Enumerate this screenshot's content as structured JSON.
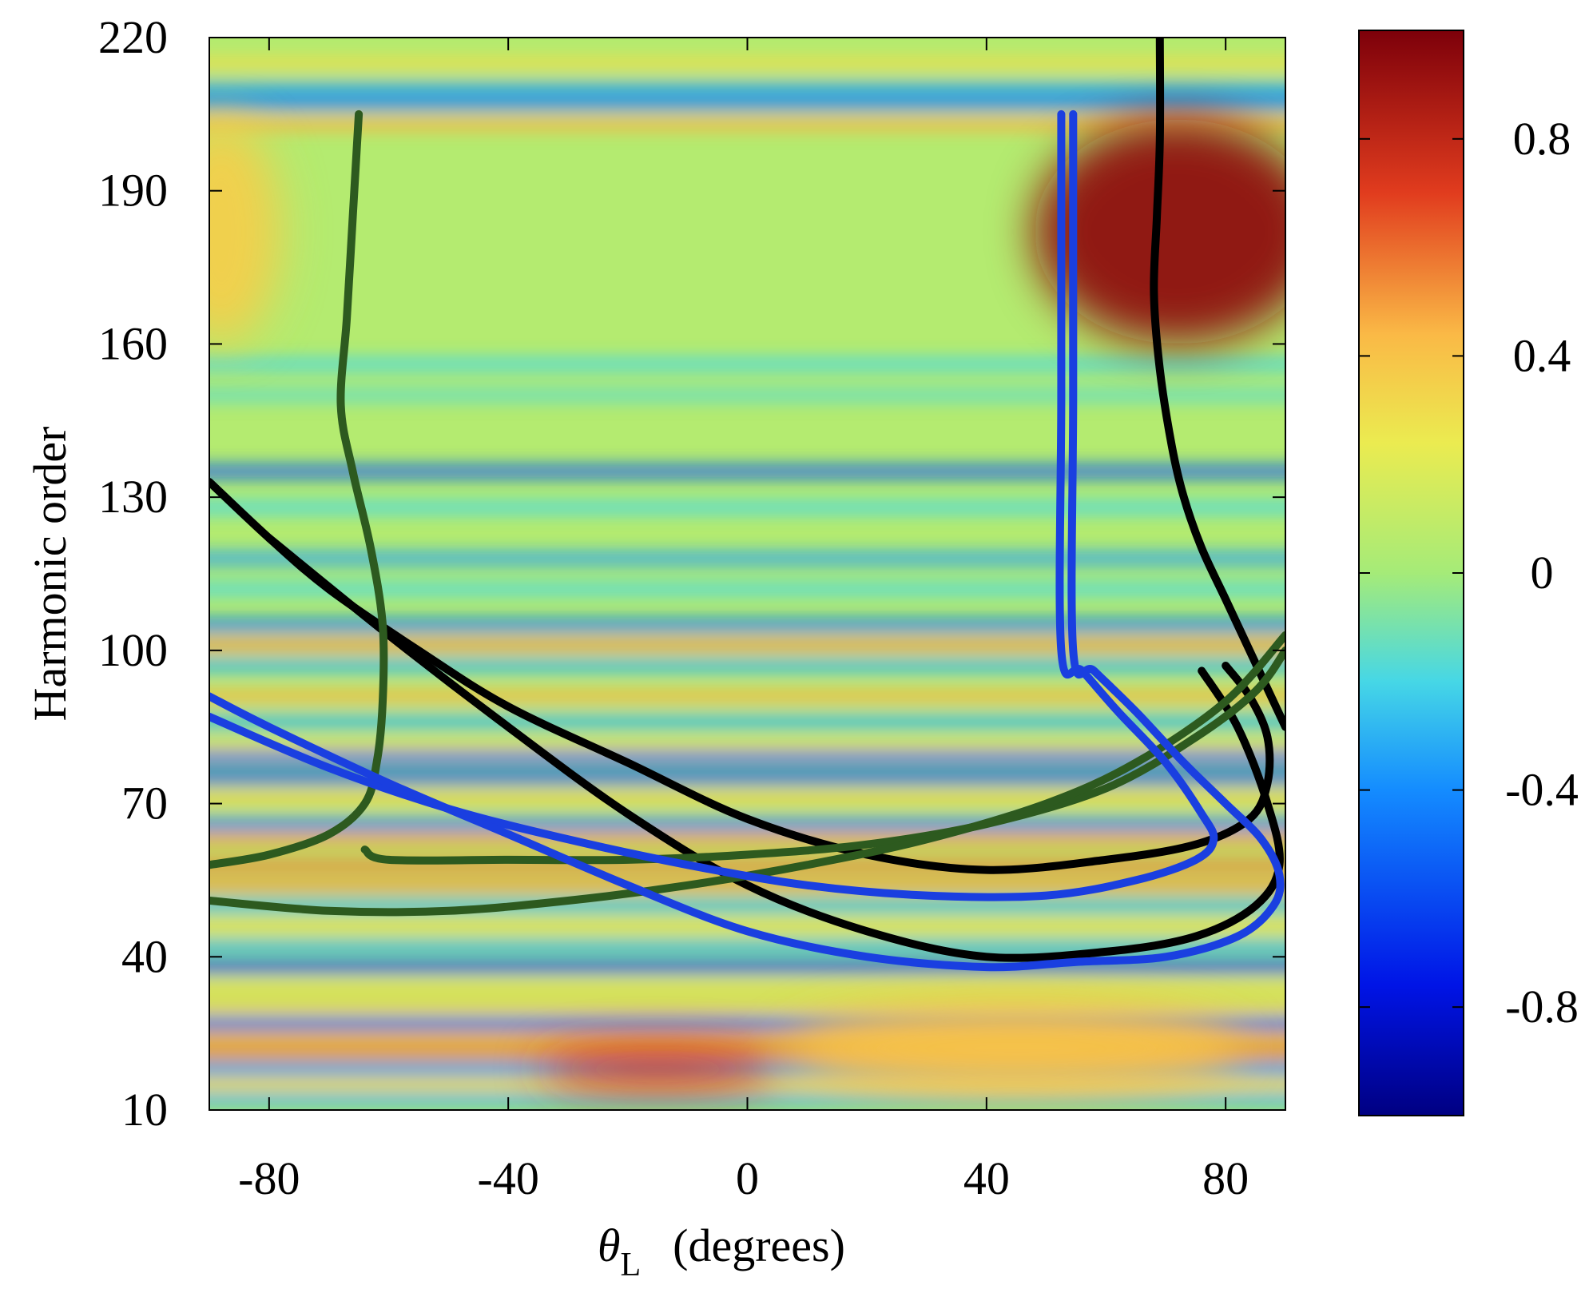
{
  "chart_data": {
    "type": "heatmap",
    "title": "",
    "xlabel_symbol": "θ",
    "xlabel_subscript": "L",
    "xlabel_unit": "(degrees)",
    "ylabel": "Harmonic order",
    "xlim": [
      -90,
      90
    ],
    "ylim": [
      10,
      220
    ],
    "x_ticks": [
      -80,
      -40,
      0,
      40,
      80
    ],
    "y_ticks": [
      10,
      40,
      70,
      100,
      130,
      160,
      190,
      220
    ],
    "colorbar": {
      "range": [
        -1,
        1
      ],
      "ticks": [
        0.8,
        0.4,
        0,
        -0.4,
        -0.8
      ],
      "tick_labels": [
        "0.8",
        "0.4",
        "0",
        "-0.4",
        "-0.8"
      ],
      "colormap": "jet"
    },
    "heatmap_bands": [
      {
        "y": 215,
        "value": 0.3
      },
      {
        "y": 210,
        "value": -0.35
      },
      {
        "y": 207,
        "value": -0.45
      },
      {
        "y": 203,
        "value": 0.45
      },
      {
        "y": 156,
        "value": -0.2
      },
      {
        "y": 150,
        "value": -0.15
      },
      {
        "y": 135,
        "value": -0.55
      },
      {
        "y": 128,
        "value": -0.2
      },
      {
        "y": 118,
        "value": -0.35
      },
      {
        "y": 112,
        "value": -0.2
      },
      {
        "y": 105,
        "value": -0.45
      },
      {
        "y": 101,
        "value": 0.5
      },
      {
        "y": 97,
        "value": -0.3
      },
      {
        "y": 91,
        "value": 0.45
      },
      {
        "y": 86,
        "value": -0.3
      },
      {
        "y": 81,
        "value": 0.3
      },
      {
        "y": 79,
        "value": -0.55
      },
      {
        "y": 75,
        "value": -0.55
      },
      {
        "y": 71,
        "value": 0.35
      },
      {
        "y": 66,
        "value": -0.45
      },
      {
        "y": 63,
        "value": 0.5
      },
      {
        "y": 58,
        "value": 0.55
      },
      {
        "y": 54,
        "value": 0.5
      },
      {
        "y": 50,
        "value": -0.3
      },
      {
        "y": 46,
        "value": 0.3
      },
      {
        "y": 42,
        "value": -0.3
      },
      {
        "y": 38,
        "value": -0.6
      },
      {
        "y": 34,
        "value": 0.3
      },
      {
        "y": 30,
        "value": 0.35
      },
      {
        "y": 27,
        "value": -0.55
      },
      {
        "y": 24,
        "value": 0.5
      },
      {
        "y": 21,
        "value": 0.55
      },
      {
        "y": 18,
        "value": -0.4
      },
      {
        "y": 15,
        "value": 0.35
      },
      {
        "y": 12,
        "value": -0.3
      }
    ],
    "heatmap_spots": [
      {
        "x": 72,
        "y": 182,
        "rx": 24,
        "ry": 22,
        "value": 0.95
      },
      {
        "x": -88,
        "y": 182,
        "rx": 10,
        "ry": 22,
        "value": 0.35
      },
      {
        "x": 45,
        "y": 22,
        "rx": 38,
        "ry": 9,
        "value": 0.4
      },
      {
        "x": -15,
        "y": 18,
        "rx": 20,
        "ry": 4,
        "value": 0.75
      }
    ],
    "series": [
      {
        "name": "black-curve-1",
        "color": "#000000",
        "x": [
          69,
          69,
          68.5,
          68,
          69,
          71,
          73,
          76,
          80,
          84,
          88,
          90
        ],
        "y": [
          220,
          200,
          185,
          170,
          155,
          140,
          130,
          120,
          110,
          100,
          90,
          85
        ]
      },
      {
        "name": "black-curve-2",
        "color": "#000000",
        "x": [
          -90,
          -80,
          -70,
          -55,
          -40,
          -20,
          0,
          20,
          40,
          60,
          75,
          84,
          87,
          87,
          84,
          80
        ],
        "y": [
          133,
          122,
          112,
          100,
          89,
          78,
          67,
          60,
          57,
          59,
          62,
          67,
          74,
          83,
          91,
          97
        ]
      },
      {
        "name": "black-curve-3",
        "color": "#000000",
        "x": [
          -80,
          -60,
          -40,
          -20,
          0,
          20,
          40,
          60,
          75,
          85,
          89,
          87,
          82,
          76
        ],
        "y": [
          122,
          103,
          85,
          68,
          54,
          45,
          40,
          41,
          44,
          50,
          58,
          70,
          85,
          96
        ]
      },
      {
        "name": "green-curve-1",
        "color": "#2d5a1f",
        "x": [
          -65,
          -66,
          -67,
          -68,
          -66,
          -63,
          -61,
          -61,
          -62,
          -64,
          -70,
          -80,
          -90
        ],
        "y": [
          205,
          185,
          165,
          148,
          135,
          120,
          105,
          90,
          78,
          70,
          64,
          60,
          58
        ]
      },
      {
        "name": "green-curve-2",
        "color": "#2d5a1f",
        "x": [
          -64,
          -60,
          -40,
          -20,
          0,
          20,
          40,
          60,
          75,
          85,
          90
        ],
        "y": [
          61,
          59,
          59,
          59,
          60,
          62,
          66,
          73,
          83,
          92,
          100
        ]
      },
      {
        "name": "green-curve-3",
        "color": "#2d5a1f",
        "x": [
          -90,
          -70,
          -50,
          -30,
          -10,
          10,
          30,
          50,
          65,
          80,
          90
        ],
        "y": [
          51,
          49,
          49,
          51,
          54,
          58,
          63,
          70,
          78,
          90,
          103
        ]
      },
      {
        "name": "blue-curve-1",
        "color": "#1a3fe0",
        "x": [
          52.5,
          52.5,
          52.5,
          56,
          62,
          70,
          76,
          78,
          75,
          65,
          50,
          30,
          10,
          -10,
          -30,
          -50,
          -70,
          -90
        ],
        "y": [
          205,
          150,
          100,
          96,
          88,
          78,
          68,
          63,
          59,
          55,
          52,
          52,
          54,
          58,
          63,
          69,
          77,
          87
        ]
      },
      {
        "name": "blue-curve-2",
        "color": "#1a3fe0",
        "x": [
          54.5,
          54.5,
          54.5,
          58,
          65,
          73,
          80,
          86,
          89,
          88,
          82,
          70,
          55,
          40,
          20,
          0,
          -20,
          -40,
          -60,
          -80,
          -90
        ],
        "y": [
          205,
          150,
          100,
          96,
          88,
          78,
          70,
          63,
          56,
          50,
          44,
          40,
          39,
          38,
          40,
          45,
          54,
          64,
          74,
          85,
          91
        ]
      }
    ]
  }
}
